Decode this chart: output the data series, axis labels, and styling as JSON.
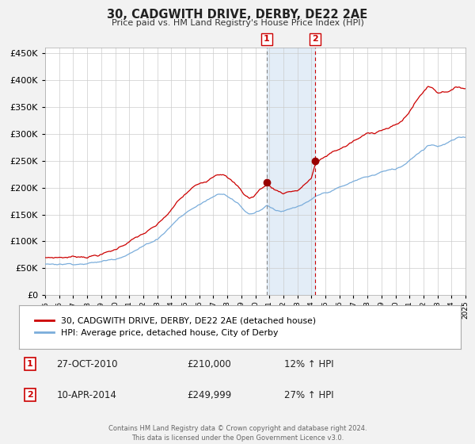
{
  "title": "30, CADGWITH DRIVE, DERBY, DE22 2AE",
  "subtitle": "Price paid vs. HM Land Registry's House Price Index (HPI)",
  "bg_color": "#f2f2f2",
  "plot_bg_color": "#ffffff",
  "grid_color": "#cccccc",
  "red_line_color": "#cc0000",
  "blue_line_color": "#7aaddb",
  "marker_color": "#990000",
  "shade_color": "#dce9f5",
  "dashed_line1_color": "#888888",
  "dashed_line2_color": "#cc0000",
  "event1_x": 2010.82,
  "event1_y": 210000,
  "event2_x": 2014.27,
  "event2_y": 249999,
  "event1_label": "1",
  "event2_label": "2",
  "event1_date": "27-OCT-2010",
  "event1_price": "£210,000",
  "event1_hpi": "12% ↑ HPI",
  "event2_date": "10-APR-2014",
  "event2_price": "£249,999",
  "event2_hpi": "27% ↑ HPI",
  "legend1_label": "30, CADGWITH DRIVE, DERBY, DE22 2AE (detached house)",
  "legend2_label": "HPI: Average price, detached house, City of Derby",
  "footer": "Contains HM Land Registry data © Crown copyright and database right 2024.\nThis data is licensed under the Open Government Licence v3.0.",
  "ylim": [
    0,
    460000
  ],
  "xlim_start": 1995,
  "xlim_end": 2025,
  "red_keypoints": [
    [
      1995.0,
      70000
    ],
    [
      1996.5,
      72000
    ],
    [
      1998.0,
      75000
    ],
    [
      1999.0,
      80000
    ],
    [
      2000.0,
      88000
    ],
    [
      2001.0,
      105000
    ],
    [
      2002.0,
      118000
    ],
    [
      2003.0,
      132000
    ],
    [
      2004.0,
      158000
    ],
    [
      2004.5,
      175000
    ],
    [
      2005.5,
      198000
    ],
    [
      2006.5,
      212000
    ],
    [
      2007.2,
      228000
    ],
    [
      2007.7,
      232000
    ],
    [
      2008.3,
      218000
    ],
    [
      2008.8,
      205000
    ],
    [
      2009.2,
      192000
    ],
    [
      2009.6,
      185000
    ],
    [
      2009.9,
      188000
    ],
    [
      2010.0,
      192000
    ],
    [
      2010.5,
      205000
    ],
    [
      2010.82,
      210000
    ],
    [
      2011.0,
      208000
    ],
    [
      2011.5,
      200000
    ],
    [
      2012.0,
      196000
    ],
    [
      2012.5,
      200000
    ],
    [
      2013.0,
      202000
    ],
    [
      2013.5,
      212000
    ],
    [
      2014.0,
      225000
    ],
    [
      2014.27,
      249999
    ],
    [
      2014.5,
      255000
    ],
    [
      2015.0,
      263000
    ],
    [
      2015.5,
      272000
    ],
    [
      2016.0,
      278000
    ],
    [
      2016.5,
      284000
    ],
    [
      2017.0,
      292000
    ],
    [
      2017.5,
      298000
    ],
    [
      2018.0,
      305000
    ],
    [
      2018.5,
      308000
    ],
    [
      2019.0,
      315000
    ],
    [
      2019.5,
      318000
    ],
    [
      2020.0,
      322000
    ],
    [
      2020.5,
      330000
    ],
    [
      2021.0,
      348000
    ],
    [
      2021.5,
      368000
    ],
    [
      2022.0,
      385000
    ],
    [
      2022.3,
      395000
    ],
    [
      2022.7,
      392000
    ],
    [
      2023.0,
      385000
    ],
    [
      2023.5,
      388000
    ],
    [
      2024.0,
      392000
    ],
    [
      2024.5,
      396000
    ],
    [
      2025.0,
      395000
    ]
  ],
  "blue_keypoints": [
    [
      1995.0,
      58000
    ],
    [
      1996.5,
      60000
    ],
    [
      1998.0,
      63000
    ],
    [
      1999.0,
      66000
    ],
    [
      2000.0,
      72000
    ],
    [
      2001.0,
      85000
    ],
    [
      2002.0,
      98000
    ],
    [
      2003.0,
      112000
    ],
    [
      2004.0,
      138000
    ],
    [
      2004.5,
      152000
    ],
    [
      2005.5,
      170000
    ],
    [
      2006.5,
      185000
    ],
    [
      2007.2,
      196000
    ],
    [
      2007.7,
      200000
    ],
    [
      2008.3,
      193000
    ],
    [
      2008.8,
      183000
    ],
    [
      2009.2,
      170000
    ],
    [
      2009.6,
      164000
    ],
    [
      2009.9,
      166000
    ],
    [
      2010.0,
      168000
    ],
    [
      2010.5,
      175000
    ],
    [
      2010.82,
      182000
    ],
    [
      2011.0,
      180000
    ],
    [
      2011.5,
      174000
    ],
    [
      2012.0,
      172000
    ],
    [
      2012.5,
      175000
    ],
    [
      2013.0,
      178000
    ],
    [
      2013.5,
      183000
    ],
    [
      2014.0,
      188000
    ],
    [
      2014.27,
      193000
    ],
    [
      2014.5,
      196000
    ],
    [
      2015.0,
      200000
    ],
    [
      2015.5,
      205000
    ],
    [
      2016.0,
      210000
    ],
    [
      2016.5,
      214000
    ],
    [
      2017.0,
      220000
    ],
    [
      2017.5,
      225000
    ],
    [
      2018.0,
      229000
    ],
    [
      2018.5,
      232000
    ],
    [
      2019.0,
      238000
    ],
    [
      2019.5,
      240000
    ],
    [
      2020.0,
      242000
    ],
    [
      2020.5,
      248000
    ],
    [
      2021.0,
      260000
    ],
    [
      2021.5,
      272000
    ],
    [
      2022.0,
      282000
    ],
    [
      2022.3,
      290000
    ],
    [
      2022.7,
      292000
    ],
    [
      2023.0,
      290000
    ],
    [
      2023.5,
      294000
    ],
    [
      2024.0,
      300000
    ],
    [
      2024.5,
      304000
    ],
    [
      2025.0,
      305000
    ]
  ]
}
